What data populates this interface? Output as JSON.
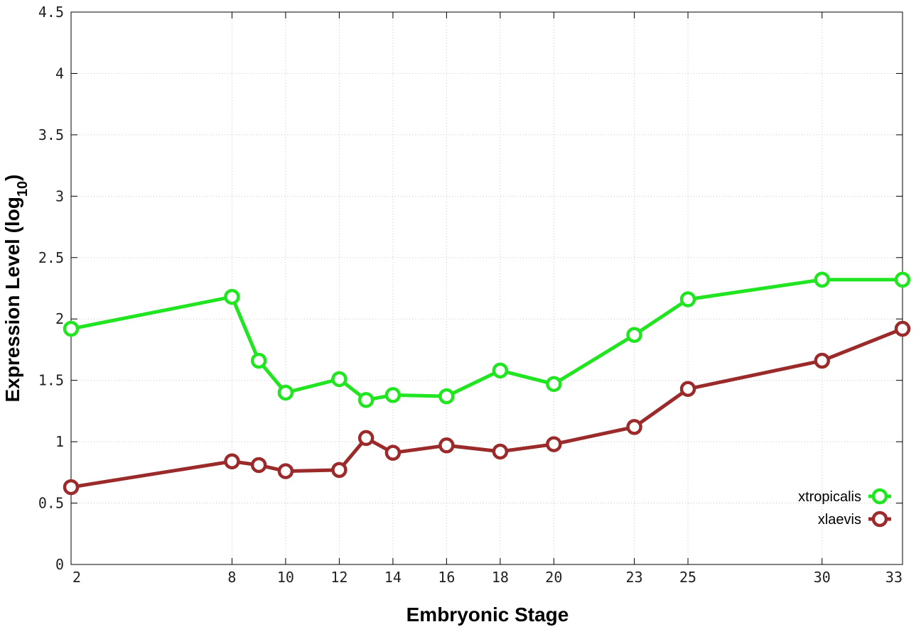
{
  "chart_data": {
    "type": "line",
    "title": "",
    "xlabel": "Embryonic Stage",
    "ylabel": {
      "main": "Expression Level (log",
      "sub": "10",
      "close": ")"
    },
    "x": [
      2,
      8,
      9,
      10,
      12,
      13,
      14,
      16,
      18,
      20,
      23,
      25,
      30,
      33
    ],
    "xticks": [
      2,
      8,
      10,
      12,
      14,
      16,
      18,
      20,
      23,
      25,
      30,
      33
    ],
    "xtick_labels": [
      "2",
      "8",
      "10",
      "12",
      "14",
      "16",
      "18",
      "20",
      "23",
      "25",
      "30",
      "33"
    ],
    "xlim": [
      2,
      33
    ],
    "yticks": [
      0,
      0.5,
      1,
      1.5,
      2,
      2.5,
      3,
      3.5,
      4,
      4.5
    ],
    "ytick_labels": [
      "0",
      "0.5",
      "1",
      "1.5",
      "2",
      "2.5",
      "3",
      "3.5",
      "4",
      "4.5"
    ],
    "ylim": [
      0,
      4.5
    ],
    "grid": true,
    "legend_position": "bottom-right",
    "series": [
      {
        "name": "xtropicalis",
        "color": "#22e522",
        "values": [
          1.92,
          2.18,
          1.66,
          1.4,
          1.51,
          1.34,
          1.38,
          1.37,
          1.58,
          1.47,
          1.87,
          2.16,
          2.32,
          2.32
        ]
      },
      {
        "name": "xlaevis",
        "color": "#9b2a2a",
        "values": [
          0.63,
          0.84,
          0.81,
          0.76,
          0.77,
          1.03,
          0.91,
          0.97,
          0.92,
          0.98,
          1.12,
          1.43,
          1.66,
          1.92
        ]
      }
    ]
  }
}
